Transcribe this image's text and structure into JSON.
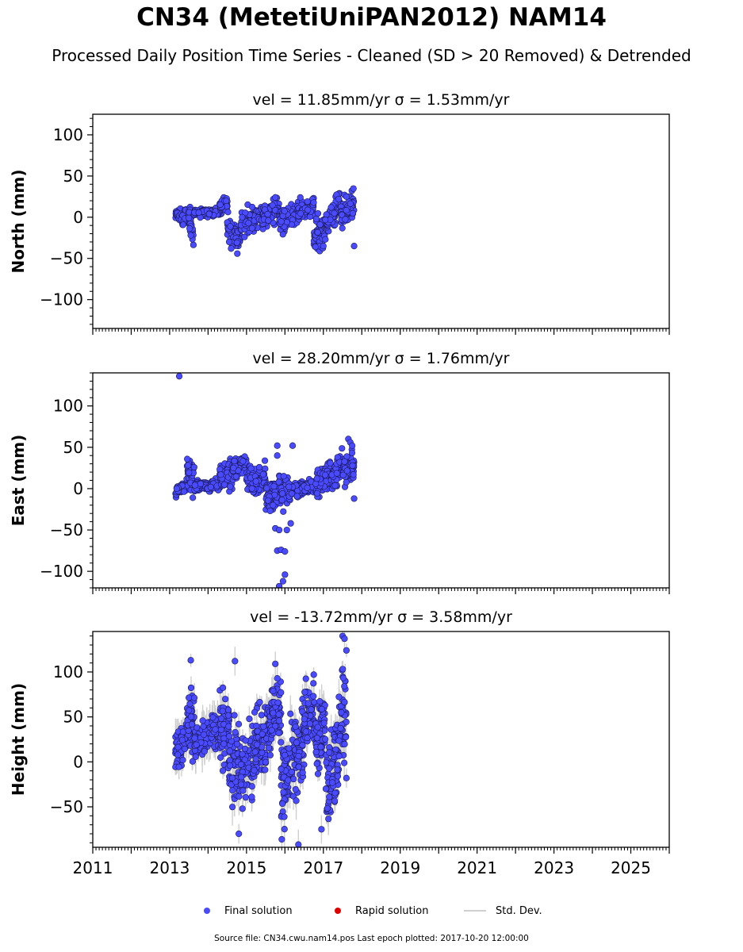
{
  "figure": {
    "title": "CN34 (MetetiUniPAN2012) NAM14",
    "subtitle": "Processed Daily Position Time Series - Cleaned (SD > 20 Removed) & Detrended",
    "footer": "Source file: CN34.cwu.nam14.pos  Last epoch plotted: 2017-10-20 12:00:00"
  },
  "legend": {
    "final": "Final solution",
    "rapid": "Rapid solution",
    "std": "Std. Dev."
  },
  "colors": {
    "final": "#4a4aff",
    "final_edge": "#1a1a55",
    "rapid": "#e00000",
    "std": "#cfcfcf"
  },
  "chart_data": [
    {
      "type": "scatter",
      "panel": "north",
      "title": "vel = 11.85mm/yr   σ = 1.53mm/yr",
      "ylabel": "North (mm)",
      "xlim": [
        2011,
        2026
      ],
      "ylim": [
        -135,
        125
      ],
      "yticks": [
        -100,
        -50,
        0,
        50,
        100
      ],
      "y_minor_step": 10,
      "x_tick_labels_shown": false,
      "sd": 3,
      "segments": [
        [
          2013.15,
          2013.3,
          3,
          4,
          -1
        ],
        [
          2013.3,
          2013.55,
          0,
          5,
          1
        ],
        [
          2013.5,
          2013.62,
          -10,
          8,
          -2
        ],
        [
          2013.62,
          2014.35,
          6,
          3,
          0
        ],
        [
          2014.3,
          2014.5,
          15,
          4,
          0
        ],
        [
          2014.5,
          2014.85,
          -22,
          10,
          -1
        ],
        [
          2014.85,
          2015.3,
          -5,
          8,
          1
        ],
        [
          2015.3,
          2015.85,
          3,
          7,
          1
        ],
        [
          2015.85,
          2016.35,
          0,
          8,
          1
        ],
        [
          2016.35,
          2016.75,
          8,
          6,
          1
        ],
        [
          2016.75,
          2017.05,
          -20,
          11,
          0
        ],
        [
          2017.05,
          2017.45,
          5,
          9,
          2
        ],
        [
          2017.45,
          2017.8,
          8,
          10,
          1
        ]
      ],
      "extra_points": [
        [
          2014.6,
          -38
        ],
        [
          2015.75,
          24
        ],
        [
          2016.4,
          24
        ],
        [
          2017.55,
          27
        ],
        [
          2017.6,
          25
        ],
        [
          2017.4,
          22
        ],
        [
          2017.8,
          -35
        ],
        [
          2017.0,
          -35
        ],
        [
          2014.55,
          -30
        ],
        [
          2013.55,
          -22
        ]
      ]
    },
    {
      "type": "scatter",
      "panel": "east",
      "title": "vel = 28.20mm/yr   σ = 1.76mm/yr",
      "ylabel": "East (mm)",
      "xlim": [
        2011,
        2026
      ],
      "ylim": [
        -120,
        140
      ],
      "yticks": [
        -100,
        -50,
        0,
        50,
        100
      ],
      "y_minor_step": 10,
      "x_tick_labels_shown": false,
      "sd": 3,
      "segments": [
        [
          2013.15,
          2013.45,
          0,
          4,
          1
        ],
        [
          2013.45,
          2013.65,
          15,
          11,
          -1
        ],
        [
          2013.65,
          2014.3,
          3,
          3,
          0
        ],
        [
          2014.3,
          2014.65,
          18,
          9,
          0
        ],
        [
          2014.65,
          2015.0,
          28,
          7,
          1
        ],
        [
          2015.0,
          2015.5,
          10,
          9,
          0
        ],
        [
          2015.5,
          2016.1,
          -5,
          11,
          1
        ],
        [
          2016.1,
          2016.8,
          0,
          5,
          1
        ],
        [
          2016.8,
          2017.2,
          12,
          10,
          1
        ],
        [
          2017.2,
          2017.5,
          20,
          9,
          2
        ],
        [
          2017.5,
          2017.8,
          25,
          10,
          0
        ]
      ],
      "extra_points": [
        [
          2013.25,
          136
        ],
        [
          2015.85,
          -118
        ],
        [
          2015.95,
          -112
        ],
        [
          2016.0,
          -104
        ],
        [
          2015.8,
          -75
        ],
        [
          2015.9,
          -74
        ],
        [
          2016.0,
          -76
        ],
        [
          2015.75,
          -48
        ],
        [
          2015.85,
          -50
        ],
        [
          2016.05,
          -50
        ],
        [
          2016.15,
          -42
        ],
        [
          2015.8,
          52
        ],
        [
          2016.2,
          52
        ],
        [
          2017.65,
          60
        ],
        [
          2017.7,
          56
        ],
        [
          2017.75,
          52
        ],
        [
          2017.8,
          -12
        ],
        [
          2015.8,
          40
        ]
      ]
    },
    {
      "type": "scatter",
      "panel": "height",
      "title": "vel = -13.72mm/yr   σ = 3.58mm/yr",
      "ylabel": "Height (mm)",
      "xlim": [
        2011,
        2026
      ],
      "ylim": [
        -95,
        145
      ],
      "yticks": [
        -50,
        0,
        50,
        100
      ],
      "y_minor_step": 10,
      "xticks": [
        2011,
        2013,
        2015,
        2017,
        2019,
        2021,
        2023,
        2025
      ],
      "x_minor_step": 0.0833333,
      "x_tick_labels_shown": true,
      "sd": 14,
      "segments": [
        [
          2013.15,
          2013.45,
          18,
          12,
          1
        ],
        [
          2013.45,
          2013.65,
          45,
          24,
          0
        ],
        [
          2013.65,
          2014.3,
          28,
          10,
          1
        ],
        [
          2014.3,
          2014.55,
          38,
          22,
          0
        ],
        [
          2014.55,
          2014.85,
          0,
          28,
          0
        ],
        [
          2014.85,
          2015.4,
          5,
          22,
          1
        ],
        [
          2015.4,
          2015.65,
          30,
          20,
          1
        ],
        [
          2015.65,
          2015.9,
          55,
          24,
          0
        ],
        [
          2015.9,
          2016.25,
          -10,
          28,
          1
        ],
        [
          2016.25,
          2016.5,
          15,
          25,
          1
        ],
        [
          2016.5,
          2016.8,
          52,
          18,
          0
        ],
        [
          2016.8,
          2017.05,
          30,
          26,
          1
        ],
        [
          2017.05,
          2017.4,
          -15,
          30,
          1
        ],
        [
          2017.4,
          2017.6,
          50,
          35,
          0
        ]
      ],
      "extra_points": [
        [
          2013.55,
          113
        ],
        [
          2014.7,
          112
        ],
        [
          2015.75,
          109
        ],
        [
          2016.75,
          97
        ],
        [
          2017.5,
          140
        ],
        [
          2017.55,
          137
        ],
        [
          2017.6,
          124
        ],
        [
          2016.35,
          -92
        ],
        [
          2014.8,
          -80
        ],
        [
          2016.95,
          -75
        ],
        [
          2017.6,
          -18
        ]
      ]
    }
  ]
}
